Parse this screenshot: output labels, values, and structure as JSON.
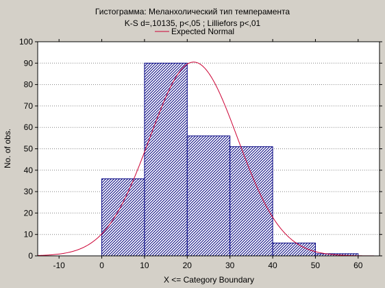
{
  "chart_data": {
    "type": "bar",
    "title": "Гистограмма: Меланхолический тип темперамента",
    "subtitle": "K-S d=,10135, p<,05 ; Lilliefors p<,01",
    "legend": [
      {
        "name": "Expected Normal",
        "color": "#cc0033"
      }
    ],
    "legend_position": "top",
    "xlabel": "X <= Category Boundary",
    "ylabel": "No. of obs.",
    "xlim": [
      -15,
      65
    ],
    "ylim": [
      0,
      100
    ],
    "xticks": [
      -10,
      0,
      10,
      20,
      30,
      40,
      50,
      60
    ],
    "yticks": [
      0,
      10,
      20,
      30,
      40,
      50,
      60,
      70,
      80,
      90,
      100
    ],
    "grid": true,
    "bins": [
      {
        "from": 0,
        "to": 10,
        "value": 36
      },
      {
        "from": 10,
        "to": 20,
        "value": 90
      },
      {
        "from": 20,
        "to": 30,
        "value": 56
      },
      {
        "from": 30,
        "to": 40,
        "value": 51
      },
      {
        "from": 40,
        "to": 50,
        "value": 6
      },
      {
        "from": 50,
        "to": 60,
        "value": 1
      }
    ],
    "normal_curve": {
      "name": "Expected Normal",
      "peak_x": 21.5,
      "peak_y": 90.5,
      "sd": 10.3
    },
    "colors": {
      "bar_fill": "#ffffff",
      "bar_stroke": "#000080",
      "hatch": "#000080",
      "curve": "#cc0033",
      "background": "#d4d0c8"
    }
  }
}
